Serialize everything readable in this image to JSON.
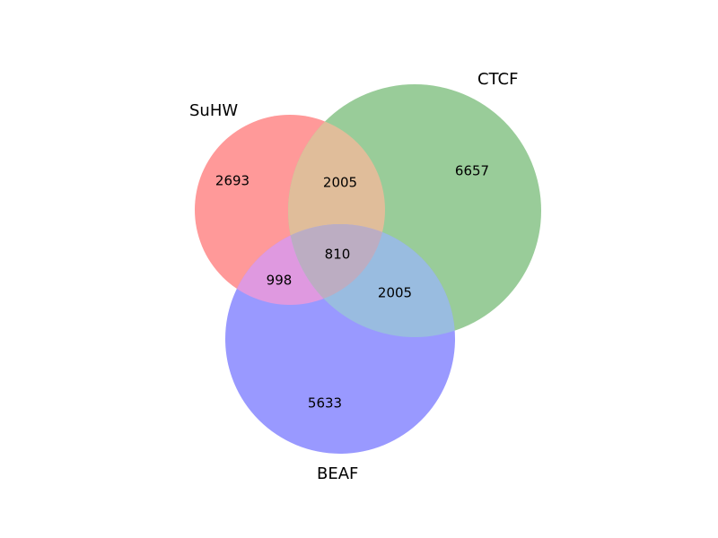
{
  "venn": {
    "sets": [
      {
        "id": "suhw",
        "label": "SuHW",
        "color": "#ff9999"
      },
      {
        "id": "ctcf",
        "label": "CTCF",
        "color": "#99cc99"
      },
      {
        "id": "beaf",
        "label": "BEAF",
        "color": "#9999ff"
      }
    ],
    "regions": {
      "suhw_only": "2693",
      "ctcf_only": "6657",
      "beaf_only": "5633",
      "suhw_ctcf": "2005",
      "suhw_beaf": "998",
      "ctcf_beaf": "2005",
      "all_three": "810"
    },
    "overlap_colors": {
      "suhw_ctcf": "#e0bd9a",
      "suhw_beaf": "#df99e0",
      "ctcf_beaf": "#99bce0",
      "all_three": "#bcadc2"
    }
  }
}
